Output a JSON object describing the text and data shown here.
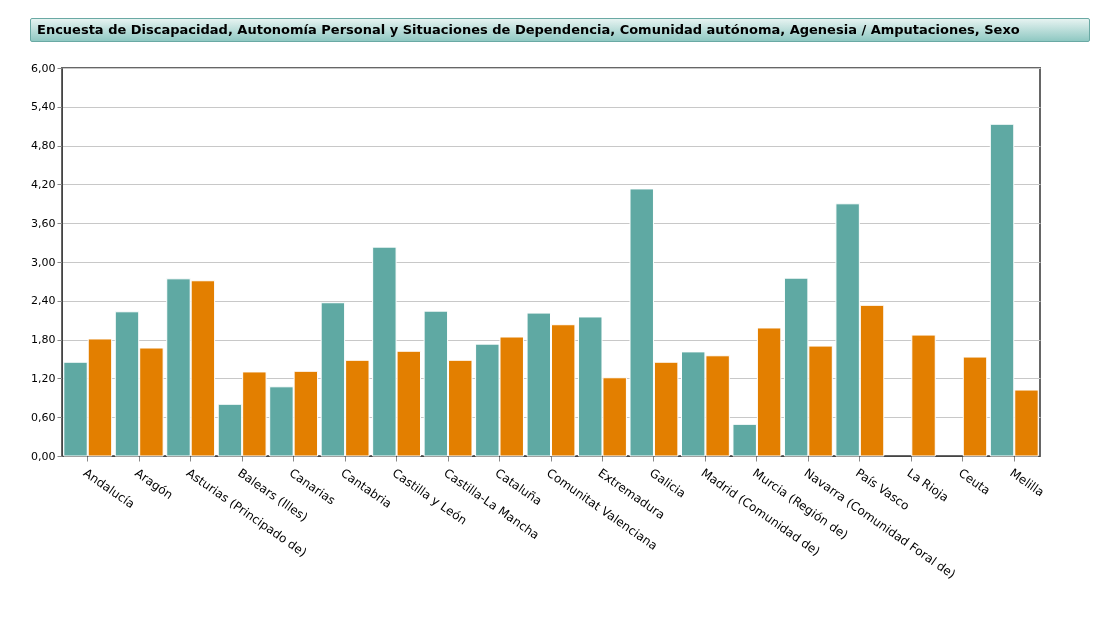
{
  "chart_data": {
    "type": "bar",
    "title": "Encuesta de Discapacidad, Autonomía Personal y Situaciones de Dependencia, Comunidad autónoma, Agenesia / Amputaciones, Sexo",
    "categories": [
      "Andalucía",
      "Aragón",
      "Asturias (Principado de)",
      "Balears (Illes)",
      "Canarias",
      "Cantabria",
      "Castilla y León",
      "Castilla-La Mancha",
      "Cataluña",
      "Comunitat Valenciana",
      "Extremadura",
      "Galicia",
      "Madrid (Comunidad de)",
      "Murcia (Región de)",
      "Navarra (Comunidad Foral de)",
      "País Vasco",
      "La Rioja",
      "Ceuta",
      "Melilla"
    ],
    "series": [
      {
        "color": "#5fa9a3",
        "values": [
          1.45,
          2.23,
          2.74,
          0.8,
          1.07,
          2.37,
          3.23,
          2.24,
          1.73,
          2.21,
          2.15,
          4.13,
          1.61,
          0.49,
          2.75,
          3.9,
          null,
          null,
          5.13
        ]
      },
      {
        "color": "#e37f00",
        "values": [
          1.81,
          1.67,
          2.71,
          1.3,
          1.31,
          1.48,
          1.62,
          1.48,
          1.84,
          2.03,
          1.21,
          1.45,
          1.55,
          1.98,
          1.7,
          2.33,
          1.87,
          1.53,
          1.02
        ]
      }
    ],
    "ylim": [
      0,
      6
    ],
    "yticks": [
      {
        "value": 0,
        "label": "0,00"
      },
      {
        "value": 0.6,
        "label": "0,60"
      },
      {
        "value": 1.2,
        "label": "1,20"
      },
      {
        "value": 1.8,
        "label": "1,80"
      },
      {
        "value": 2.4,
        "label": "2,40"
      },
      {
        "value": 3,
        "label": "3,00"
      },
      {
        "value": 3.6,
        "label": "3,60"
      },
      {
        "value": 4.2,
        "label": "4,20"
      },
      {
        "value": 4.8,
        "label": "4,80"
      },
      {
        "value": 5.4,
        "label": "5,40"
      },
      {
        "value": 6,
        "label": "6,00"
      }
    ],
    "grid": "y"
  }
}
